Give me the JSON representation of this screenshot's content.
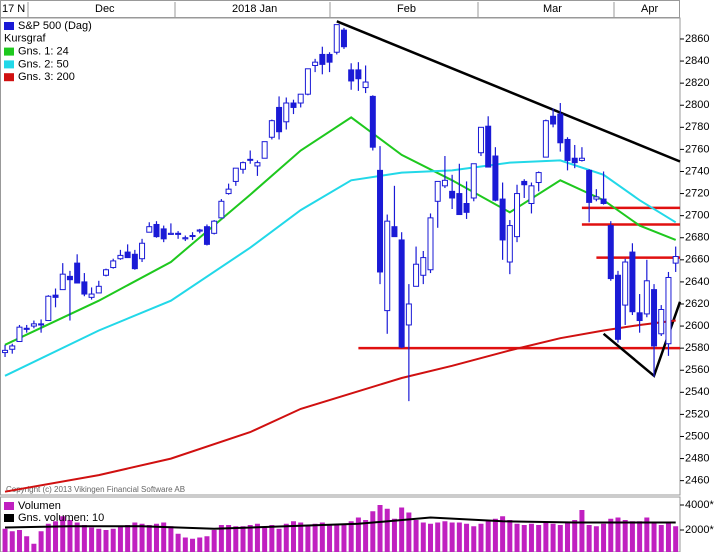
{
  "chart_data": [
    {
      "type": "candlestick",
      "title": "S&P 500 (Dag)",
      "color": "#1a1ad6",
      "legend_label": "Kursgraf",
      "top_axis_labels": [
        "17 N",
        "Dec",
        "2018 Jan",
        "Feb",
        "Mar",
        "Apr"
      ],
      "copyright": "Copyright (c) 2013 Vikingen Financial Software AB",
      "xlim": [
        0.3,
        94.6
      ],
      "ylim": [
        2447,
        2879
      ],
      "yticks": [
        2460,
        2480,
        2500,
        2520,
        2540,
        2560,
        2580,
        2600,
        2620,
        2640,
        2660,
        2680,
        2700,
        2720,
        2740,
        2760,
        2780,
        2800,
        2820,
        2840,
        2860
      ],
      "open": [
        2576,
        2579,
        2586,
        2598,
        2600,
        2602,
        2605,
        2628,
        2633,
        2645,
        2657,
        2640,
        2626,
        2630,
        2646,
        2653,
        2661,
        2667,
        2665,
        2661,
        2685,
        2692,
        2688,
        2683,
        2684,
        2679,
        2682,
        2686,
        2690,
        2684,
        2698,
        2720,
        2731,
        2742,
        2751,
        2745,
        2752,
        2771,
        2798,
        2785,
        2802,
        2802,
        2810,
        2836,
        2846,
        2846,
        2848,
        2868,
        2832,
        2832,
        2816,
        2808,
        2741,
        2614,
        2690,
        2678,
        2601,
        2636,
        2646,
        2651,
        2713,
        2727,
        2722,
        2720,
        2711,
        2716,
        2757,
        2781,
        2754,
        2715,
        2658,
        2681,
        2731,
        2711,
        2730,
        2753,
        2790,
        2792,
        2769,
        2752,
        2750,
        2741,
        2715,
        2715,
        2691,
        2646,
        2619,
        2667,
        2612,
        2611,
        2633,
        2593,
        2584,
        2657
      ],
      "high": [
        2583,
        2584,
        2601,
        2601,
        2605,
        2606,
        2628,
        2634,
        2657,
        2650,
        2665,
        2648,
        2635,
        2641,
        2652,
        2661,
        2669,
        2674,
        2669,
        2679,
        2694,
        2695,
        2691,
        2693,
        2686,
        2682,
        2685,
        2688,
        2692,
        2696,
        2715,
        2729,
        2743,
        2749,
        2759,
        2750,
        2767,
        2787,
        2808,
        2807,
        2805,
        2810,
        2833,
        2842,
        2853,
        2848,
        2873,
        2870,
        2838,
        2839,
        2836,
        2809,
        2763,
        2701,
        2727,
        2685,
        2638,
        2672,
        2668,
        2702,
        2731,
        2754,
        2737,
        2747,
        2731,
        2747,
        2780,
        2790,
        2762,
        2730,
        2696,
        2728,
        2733,
        2730,
        2740,
        2787,
        2797,
        2802,
        2771,
        2764,
        2762,
        2742,
        2724,
        2740,
        2695,
        2650,
        2661,
        2675,
        2629,
        2660,
        2638,
        2619,
        2649,
        2672
      ],
      "low": [
        2572,
        2575,
        2586,
        2594,
        2598,
        2594,
        2605,
        2617,
        2633,
        2605,
        2639,
        2627,
        2624,
        2630,
        2645,
        2652,
        2660,
        2662,
        2651,
        2658,
        2685,
        2680,
        2676,
        2683,
        2679,
        2677,
        2678,
        2684,
        2673,
        2683,
        2698,
        2719,
        2727,
        2738,
        2747,
        2736,
        2752,
        2769,
        2769,
        2778,
        2792,
        2798,
        2809,
        2830,
        2828,
        2830,
        2846,
        2851,
        2814,
        2813,
        2811,
        2759,
        2638,
        2593,
        2681,
        2580,
        2532,
        2636,
        2638,
        2648,
        2689,
        2725,
        2706,
        2701,
        2697,
        2713,
        2754,
        2744,
        2713,
        2660,
        2647,
        2676,
        2716,
        2702,
        2722,
        2753,
        2780,
        2758,
        2741,
        2743,
        2749,
        2694,
        2713,
        2710,
        2641,
        2585,
        2601,
        2610,
        2594,
        2608,
        2554,
        2591,
        2573,
        2649
      ],
      "close": [
        2578,
        2582,
        2599,
        2597,
        2602,
        2601,
        2627,
        2626,
        2647,
        2642,
        2639,
        2629,
        2629,
        2636,
        2651,
        2659,
        2664,
        2662,
        2652,
        2675,
        2690,
        2681,
        2679,
        2684,
        2683,
        2680,
        2682,
        2687,
        2674,
        2695,
        2713,
        2724,
        2743,
        2748,
        2751,
        2748,
        2767,
        2786,
        2776,
        2802,
        2798,
        2810,
        2833,
        2839,
        2837,
        2839,
        2873,
        2853,
        2822,
        2824,
        2821,
        2762,
        2649,
        2695,
        2681,
        2581,
        2620,
        2656,
        2662,
        2698,
        2731,
        2732,
        2716,
        2701,
        2703,
        2747,
        2780,
        2744,
        2714,
        2678,
        2691,
        2720,
        2728,
        2727,
        2739,
        2786,
        2783,
        2766,
        2750,
        2748,
        2752,
        2712,
        2717,
        2711,
        2643,
        2588,
        2658,
        2613,
        2605,
        2641,
        2582,
        2615,
        2644,
        2663
      ],
      "series": [
        {
          "name": "Gns. 1: 24",
          "color": "#1ec81e",
          "x": [
            1,
            14,
            24,
            35,
            42,
            49,
            56,
            63,
            71,
            78,
            84,
            89,
            94
          ],
          "values": [
            2583,
            2623,
            2658,
            2719,
            2759,
            2789,
            2755,
            2732,
            2703,
            2732,
            2714,
            2691,
            2678
          ]
        },
        {
          "name": "Gns. 2: 50",
          "color": "#22d8e8",
          "x": [
            1,
            14,
            24,
            35,
            42,
            49,
            56,
            63,
            71,
            78,
            84,
            89,
            94
          ],
          "values": [
            2555,
            2596,
            2623,
            2671,
            2705,
            2732,
            2739,
            2741,
            2748,
            2750,
            2737,
            2714,
            2694
          ]
        },
        {
          "name": "Gns. 3: 200",
          "color": "#d01010",
          "x": [
            1,
            14,
            24,
            35,
            42,
            49,
            56,
            63,
            71,
            78,
            84,
            89,
            94
          ],
          "values": [
            2450,
            2465,
            2480,
            2504,
            2525,
            2539,
            2553,
            2564,
            2578,
            2589,
            2596,
            2601,
            2605
          ]
        }
      ],
      "trend_lines": [
        {
          "color": "#000000",
          "x": [
            47,
            94.6
          ],
          "y": [
            2876,
            2749
          ]
        },
        {
          "color": "#e01010",
          "x": [
            50,
            94.6
          ],
          "y": [
            2580,
            2580
          ]
        },
        {
          "color": "#e01010",
          "x": [
            81,
            94.6
          ],
          "y": [
            2707,
            2707
          ]
        },
        {
          "color": "#e01010",
          "x": [
            81,
            94.6
          ],
          "y": [
            2692,
            2692
          ]
        },
        {
          "color": "#e01010",
          "x": [
            83,
            94.6
          ],
          "y": [
            2662,
            2662
          ]
        },
        {
          "color": "#000000",
          "x": [
            84,
            91,
            94.6
          ],
          "y": [
            2593,
            2555,
            2622
          ]
        }
      ]
    },
    {
      "type": "bar",
      "xlim": [
        0.3,
        94.6
      ],
      "ylim": [
        240,
        4640
      ],
      "yticks": [
        {
          "value": 2000,
          "label": "2000*"
        },
        {
          "value": 4000,
          "label": "4000*"
        }
      ],
      "series": [
        {
          "name": "Volumen",
          "color": "#c020c0",
          "values": [
            2100,
            1900,
            2000,
            1500,
            900,
            1900,
            2500,
            2700,
            3100,
            2800,
            2600,
            2400,
            2200,
            2100,
            2000,
            2100,
            2300,
            2400,
            2600,
            2500,
            2400,
            2500,
            2600,
            2300,
            1700,
            1400,
            1300,
            1400,
            1500,
            2000,
            2400,
            2400,
            2300,
            2300,
            2400,
            2500,
            2200,
            2400,
            2100,
            2500,
            2700,
            2600,
            2400,
            2500,
            2600,
            2400,
            2400,
            2500,
            2700,
            3000,
            2800,
            3500,
            4000,
            3700,
            2900,
            3800,
            3400,
            2800,
            2600,
            2500,
            2600,
            2700,
            2600,
            2600,
            2500,
            2300,
            2500,
            2700,
            2900,
            3100,
            2800,
            2500,
            2400,
            2500,
            2400,
            2600,
            2500,
            2400,
            2600,
            2800,
            3600,
            2400,
            2300,
            2500,
            2900,
            3000,
            2800,
            2700,
            2700,
            3000,
            2600,
            2400,
            2600,
            2300
          ]
        },
        {
          "name": "Gns. volumen: 10",
          "color": "#000000",
          "x": [
            1,
            10,
            20,
            30,
            40,
            50,
            60,
            70,
            80,
            94
          ],
          "values": [
            2200,
            2300,
            2300,
            2100,
            2300,
            2500,
            3000,
            2700,
            2600,
            2600
          ]
        }
      ]
    }
  ]
}
